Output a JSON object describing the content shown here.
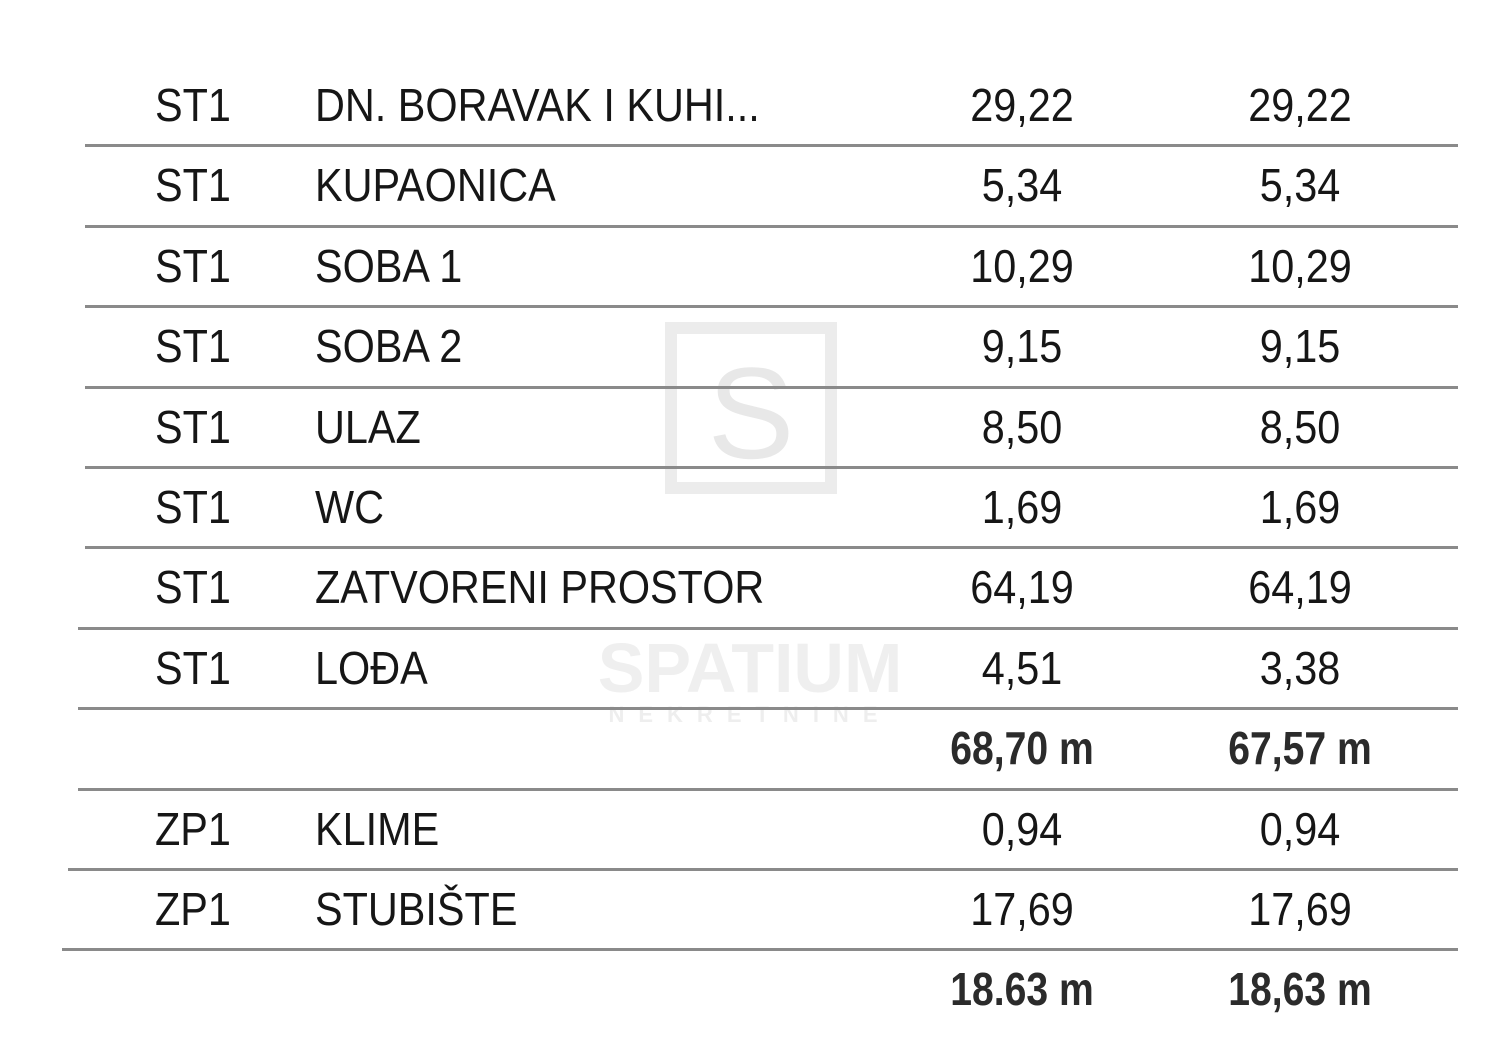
{
  "watermark": {
    "letter": "S",
    "brand": "SPATIUM",
    "subtitle": "NEKRETNINE"
  },
  "rows": [
    {
      "code": "ST1",
      "name": "DN. BORAVAK I KUHI...",
      "area1": "29,22",
      "area2": "29,22"
    },
    {
      "code": "ST1",
      "name": "KUPAONICA",
      "area1": "5,34",
      "area2": "5,34"
    },
    {
      "code": "ST1",
      "name": "SOBA 1",
      "area1": "10,29",
      "area2": "10,29"
    },
    {
      "code": "ST1",
      "name": "SOBA 2",
      "area1": "9,15",
      "area2": "9,15"
    },
    {
      "code": "ST1",
      "name": "ULAZ",
      "area1": "8,50",
      "area2": "8,50"
    },
    {
      "code": "ST1",
      "name": "WC",
      "area1": "1,69",
      "area2": "1,69"
    },
    {
      "code": "ST1",
      "name": "ZATVORENI PROSTOR",
      "area1": "64,19",
      "area2": "64,19"
    },
    {
      "code": "ST1",
      "name": "LOĐA",
      "area1": "4,51",
      "area2": "3,38"
    },
    {
      "code": "",
      "name": "",
      "area1": "68,70 m",
      "area2": "67,57 m"
    },
    {
      "code": "ZP1",
      "name": "KLIME",
      "area1": "0,94",
      "area2": "0,94"
    },
    {
      "code": "ZP1",
      "name": "STUBIŠTE",
      "area1": "17,69",
      "area2": "17,69"
    },
    {
      "code": "",
      "name": "",
      "area1": "18.63 m",
      "area2": "18,63 m"
    }
  ]
}
